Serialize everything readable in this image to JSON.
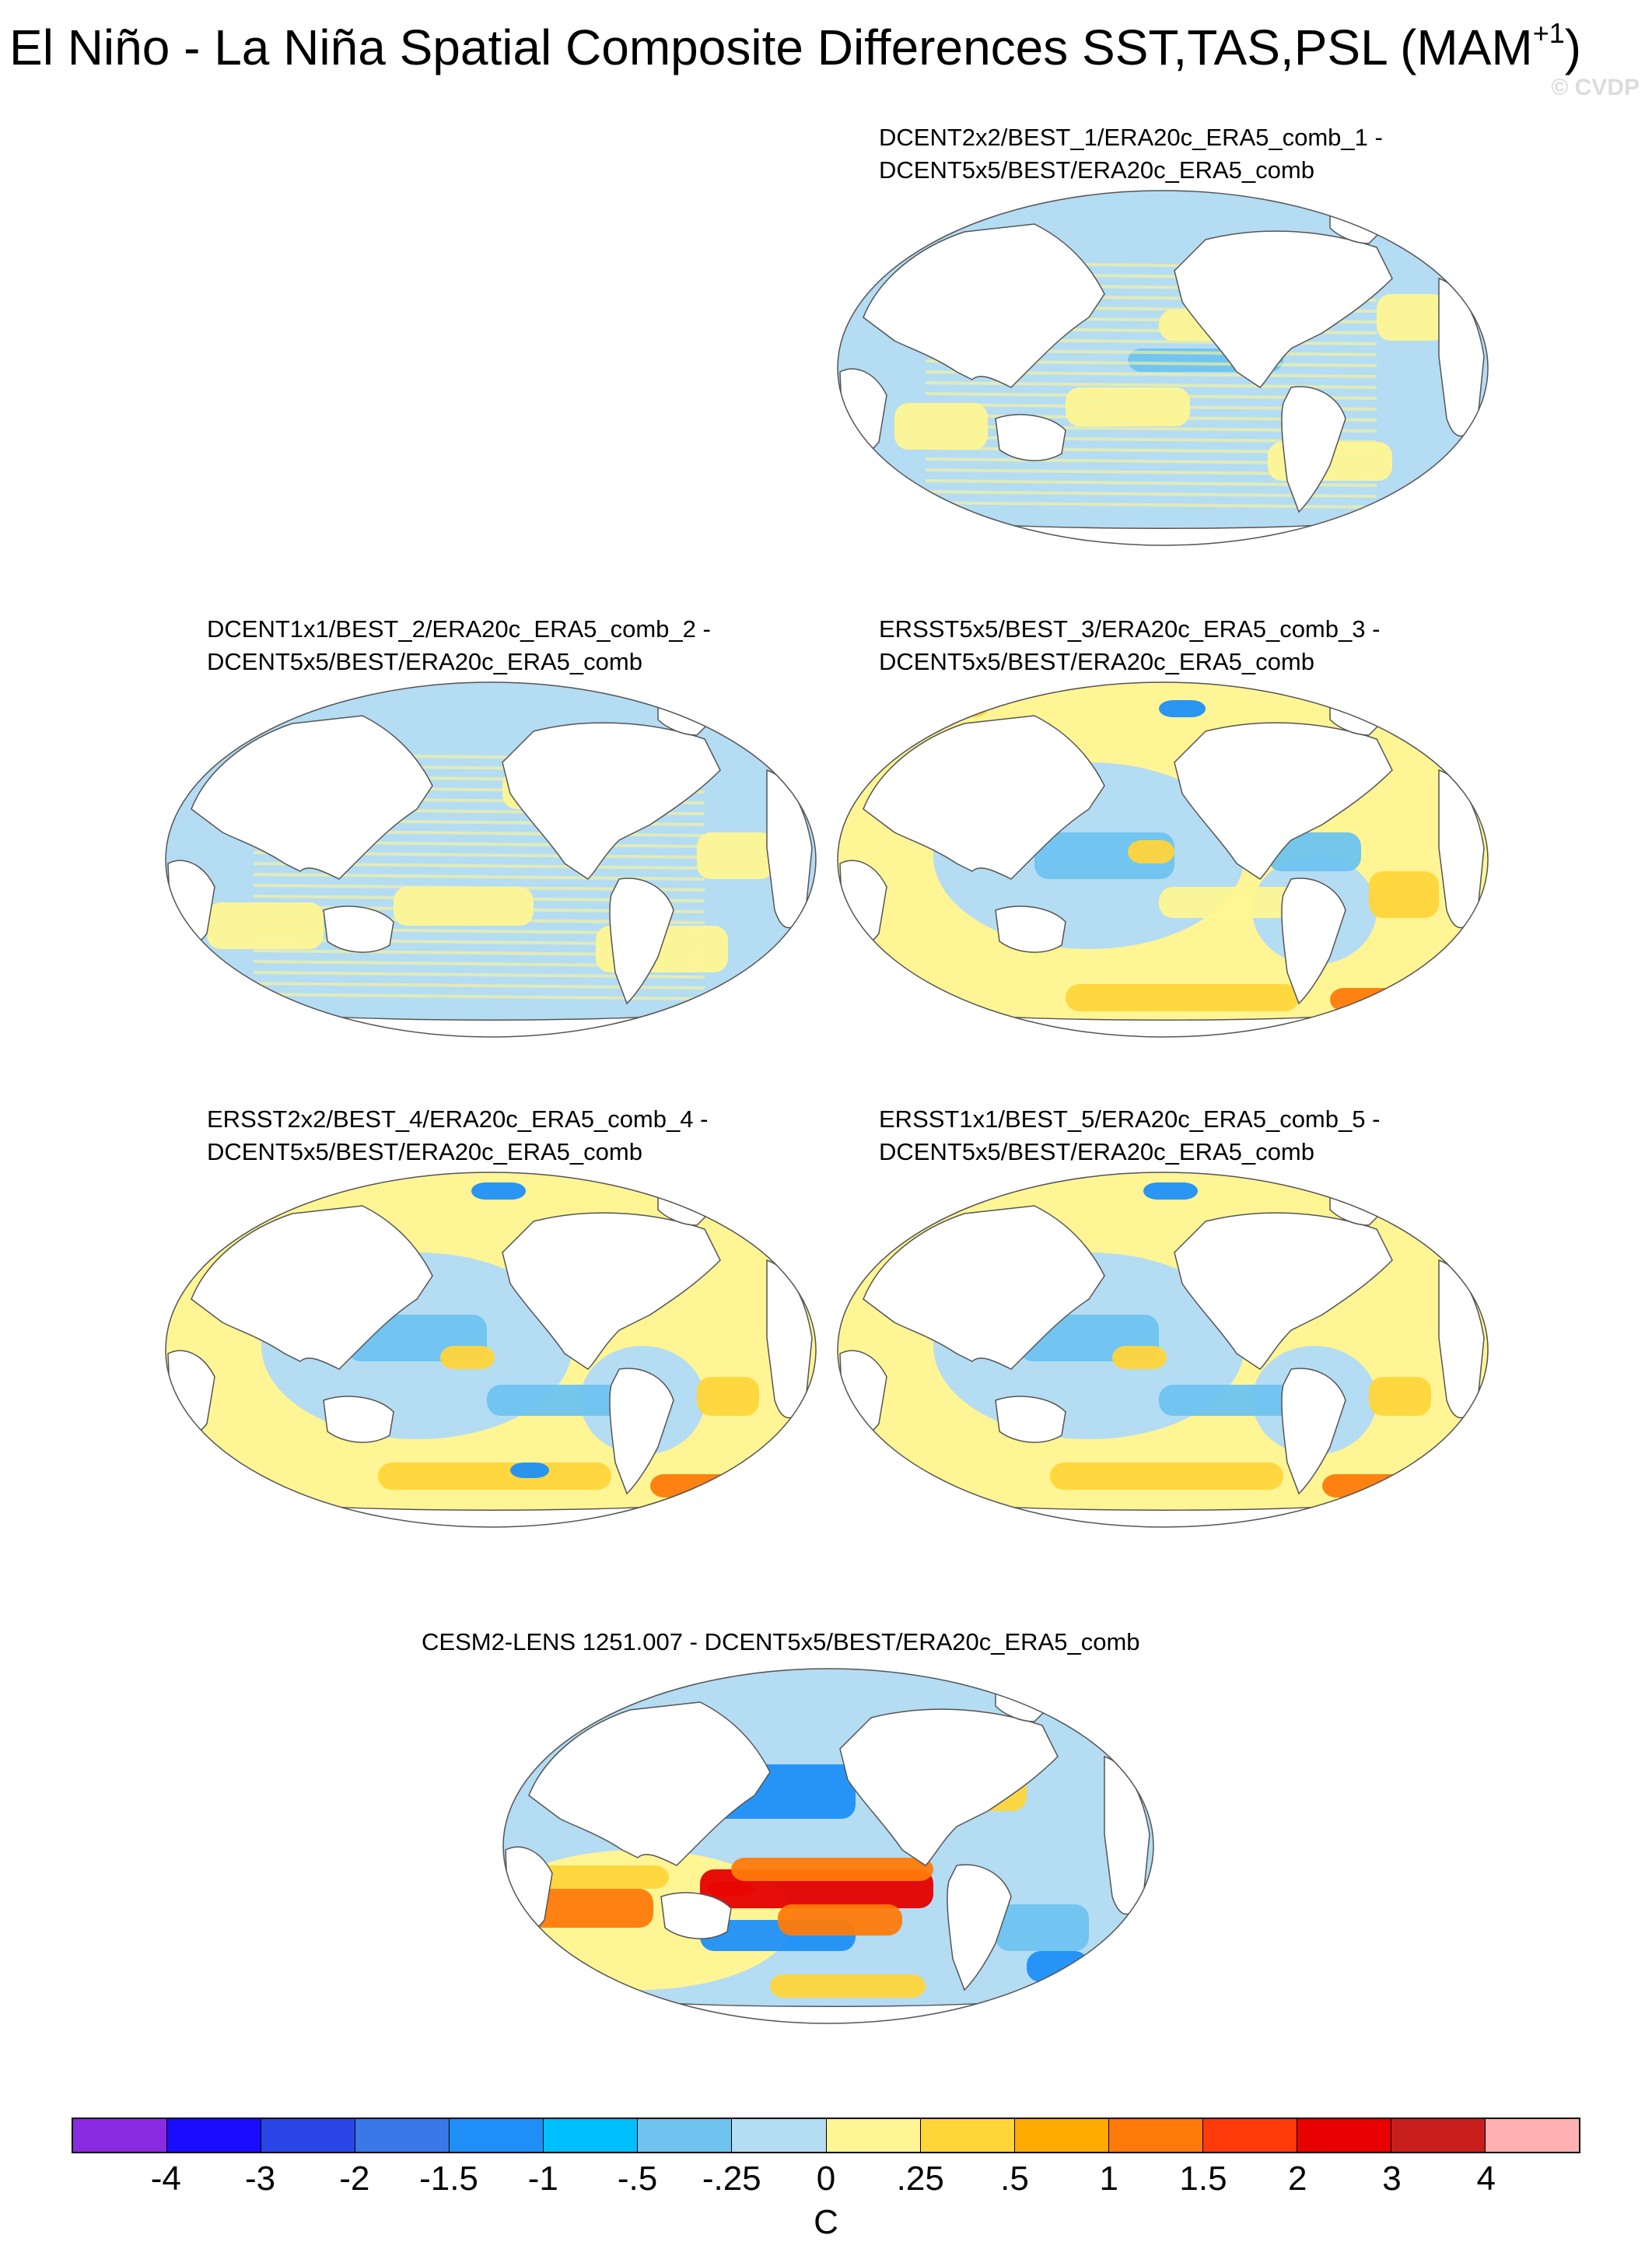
{
  "title": {
    "main": "El Niño - La Niña Spatial Composite Differences SST,TAS,PSL (MAM",
    "sup": "+1",
    "close": ")"
  },
  "watermark": "© CVDP",
  "panels": [
    {
      "line1": "DCENT2x2/BEST_1/ERA20c_ERA5_comb_1 -",
      "line2": "DCENT5x5/BEST/ERA20c_ERA5_comb"
    },
    {
      "line1": "DCENT1x1/BEST_2/ERA20c_ERA5_comb_2 -",
      "line2": "DCENT5x5/BEST/ERA20c_ERA5_comb"
    },
    {
      "line1": "ERSST5x5/BEST_3/ERA20c_ERA5_comb_3 -",
      "line2": "DCENT5x5/BEST/ERA20c_ERA5_comb"
    },
    {
      "line1": "ERSST2x2/BEST_4/ERA20c_ERA5_comb_4 -",
      "line2": "DCENT5x5/BEST/ERA20c_ERA5_comb"
    },
    {
      "line1": "ERSST1x1/BEST_5/ERA20c_ERA5_comb_5 -",
      "line2": "DCENT5x5/BEST/ERA20c_ERA5_comb"
    },
    {
      "line1": "CESM2-LENS 1251.007 - DCENT5x5/BEST/ERA20c_ERA5_comb"
    }
  ],
  "colorbar": {
    "colors": [
      "#8a2be2",
      "#1a0dff",
      "#2a46e6",
      "#3a78e8",
      "#1f8ff7",
      "#00bfff",
      "#6ec3ef",
      "#b4dcf3",
      "#fff594",
      "#ffd53a",
      "#ffaa00",
      "#ff7a0a",
      "#ff3a0a",
      "#e60000",
      "#c81e1e",
      "#ffb0b0"
    ],
    "ticks": [
      "-4",
      "-3",
      "-2",
      "-1.5",
      "-1",
      "-.5",
      "-.25",
      "0",
      ".25",
      ".5",
      "1",
      "1.5",
      "2",
      "3",
      "4"
    ],
    "units": "C"
  },
  "map_colors": {
    "ocean_default": "#b4dcf3",
    "warm_light": "#fff594",
    "warm_mid": "#ffd53a",
    "warm_strong": "#ffaa00",
    "hot": "#ff7a0a",
    "very_hot": "#e60000",
    "cool_mid": "#6ec3ef",
    "cool_strong": "#1f8ff7"
  }
}
